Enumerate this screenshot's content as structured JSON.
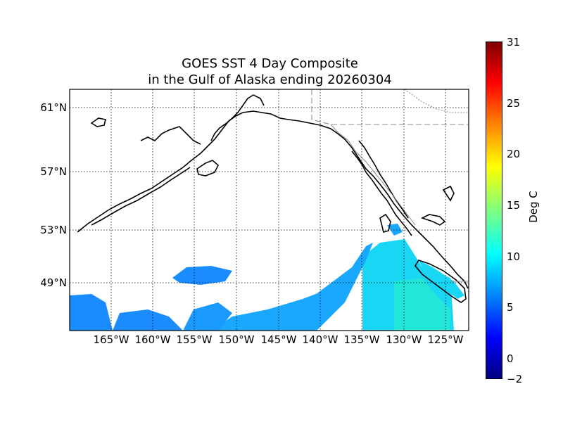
{
  "title_line1": "GOES SST 4 Day Composite",
  "title_line2": "in the Gulf of Alaska ending 20260304",
  "lat_labels": [
    "61°N",
    "57°N",
    "53°N",
    "49°N"
  ],
  "lon_labels": [
    "165°W",
    "160°W",
    "155°W",
    "150°W",
    "145°W",
    "140°W",
    "135°W",
    "130°W",
    "125°W"
  ],
  "colorbar": {
    "label": "Deg C",
    "ticks": [
      "31",
      "25",
      "20",
      "15",
      "10",
      "5",
      "0",
      "−2"
    ],
    "colormap": [
      "#00007f",
      "#0000ff",
      "#007fff",
      "#00ffff",
      "#7fff7f",
      "#ffff00",
      "#ff7f00",
      "#ff0000",
      "#7f0000"
    ]
  },
  "colors": {
    "land_outline": "#000000",
    "grid": "#000000",
    "ocean_warm": "#19d6f5",
    "ocean_cool": "#1a8cff"
  }
}
